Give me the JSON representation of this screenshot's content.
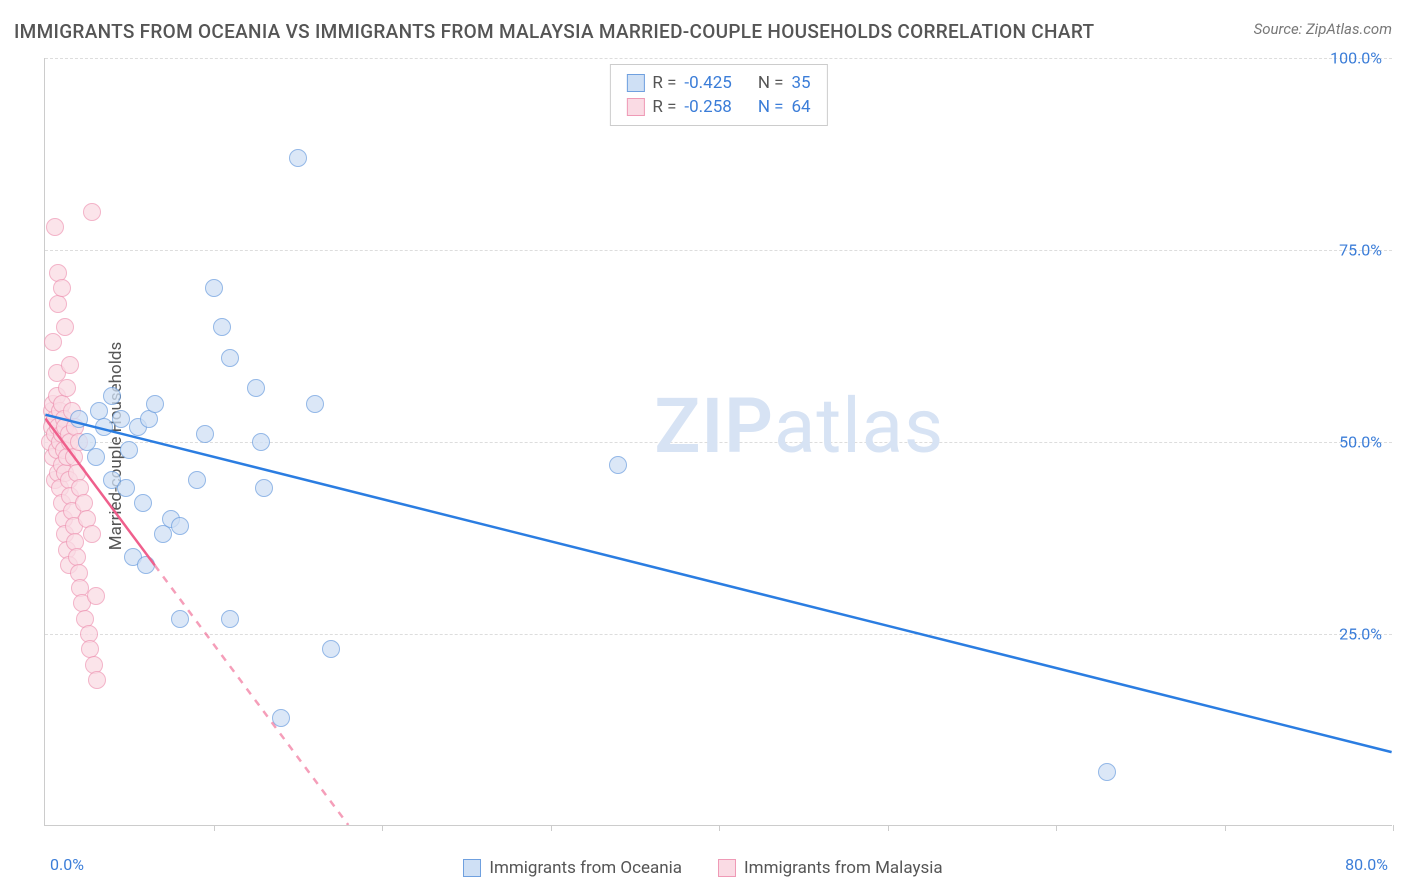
{
  "title": "IMMIGRANTS FROM OCEANIA VS IMMIGRANTS FROM MALAYSIA MARRIED-COUPLE HOUSEHOLDS CORRELATION CHART",
  "source": "Source: ZipAtlas.com",
  "y_axis_label": "Married-couple Households",
  "watermark_a": "ZIP",
  "watermark_b": "atlas",
  "watermark_color": "#d7e3f4",
  "chart": {
    "type": "scatter",
    "xlim": [
      0,
      80
    ],
    "ylim": [
      0,
      100
    ],
    "x_tick_step": 10,
    "y_ticks": [
      25,
      50,
      75,
      100
    ],
    "y_tick_labels": [
      "25.0%",
      "50.0%",
      "75.0%",
      "100.0%"
    ],
    "x_min_label": "0.0%",
    "x_max_label": "80.0%",
    "grid_color": "#dddddd",
    "axis_color": "#cccccc",
    "tick_label_color": "#3b7dd8",
    "background_color": "#ffffff",
    "marker_radius": 9,
    "series": [
      {
        "name": "Immigrants from Oceania",
        "fill": "#cfe0f5",
        "stroke": "#6fa0df",
        "fill_opacity": 0.75,
        "r_value": "-0.425",
        "n_value": "35",
        "trend": {
          "x1": 0,
          "y1": 53.5,
          "x2": 80,
          "y2": 9.5,
          "color": "#2b7de1",
          "width": 2.5,
          "dash_after_x": 100
        },
        "points": [
          [
            2.0,
            53
          ],
          [
            2.5,
            50
          ],
          [
            3.0,
            48
          ],
          [
            3.2,
            54
          ],
          [
            3.5,
            52
          ],
          [
            4.0,
            45
          ],
          [
            4.0,
            56
          ],
          [
            4.5,
            53
          ],
          [
            4.8,
            44
          ],
          [
            5.0,
            49
          ],
          [
            5.2,
            35
          ],
          [
            5.5,
            52
          ],
          [
            5.8,
            42
          ],
          [
            6.0,
            34
          ],
          [
            6.2,
            53
          ],
          [
            6.5,
            55
          ],
          [
            7.0,
            38
          ],
          [
            7.5,
            40
          ],
          [
            8.0,
            39
          ],
          [
            8.0,
            27
          ],
          [
            9.0,
            45
          ],
          [
            9.5,
            51
          ],
          [
            10.0,
            70
          ],
          [
            10.5,
            65
          ],
          [
            11.0,
            61
          ],
          [
            11.0,
            27
          ],
          [
            12.5,
            57
          ],
          [
            12.8,
            50
          ],
          [
            13.0,
            44
          ],
          [
            14.0,
            14
          ],
          [
            15.0,
            87
          ],
          [
            16.0,
            55
          ],
          [
            17.0,
            23
          ],
          [
            34.0,
            47
          ],
          [
            63.0,
            7
          ]
        ]
      },
      {
        "name": "Immigrants from Malaysia",
        "fill": "#fadbe4",
        "stroke": "#ef9ab6",
        "fill_opacity": 0.75,
        "r_value": "-0.258",
        "n_value": "64",
        "trend": {
          "x1": 0,
          "y1": 53,
          "x2": 18,
          "y2": 0,
          "color": "#ef5f8c",
          "width": 2.5,
          "dash_after_x": 6.5
        },
        "points": [
          [
            0.3,
            50
          ],
          [
            0.4,
            52
          ],
          [
            0.4,
            54
          ],
          [
            0.5,
            48
          ],
          [
            0.5,
            55
          ],
          [
            0.5,
            63
          ],
          [
            0.6,
            45
          ],
          [
            0.6,
            51
          ],
          [
            0.6,
            53
          ],
          [
            0.7,
            49
          ],
          [
            0.7,
            56
          ],
          [
            0.7,
            59
          ],
          [
            0.8,
            46
          ],
          [
            0.8,
            52
          ],
          [
            0.8,
            68
          ],
          [
            0.9,
            44
          ],
          [
            0.9,
            50
          ],
          [
            0.9,
            54
          ],
          [
            1.0,
            42
          ],
          [
            1.0,
            47
          ],
          [
            1.0,
            51
          ],
          [
            1.0,
            55
          ],
          [
            1.1,
            40
          ],
          [
            1.1,
            49
          ],
          [
            1.1,
            53
          ],
          [
            1.2,
            38
          ],
          [
            1.2,
            46
          ],
          [
            1.2,
            52
          ],
          [
            1.3,
            36
          ],
          [
            1.3,
            48
          ],
          [
            1.3,
            57
          ],
          [
            1.4,
            34
          ],
          [
            1.4,
            45
          ],
          [
            1.4,
            51
          ],
          [
            1.5,
            43
          ],
          [
            1.5,
            50
          ],
          [
            1.5,
            60
          ],
          [
            1.6,
            41
          ],
          [
            1.6,
            54
          ],
          [
            1.7,
            39
          ],
          [
            1.7,
            48
          ],
          [
            1.8,
            37
          ],
          [
            1.8,
            52
          ],
          [
            1.9,
            35
          ],
          [
            1.9,
            46
          ],
          [
            2.0,
            33
          ],
          [
            2.0,
            50
          ],
          [
            2.1,
            31
          ],
          [
            2.1,
            44
          ],
          [
            2.2,
            29
          ],
          [
            2.3,
            42
          ],
          [
            2.4,
            27
          ],
          [
            2.5,
            40
          ],
          [
            2.6,
            25
          ],
          [
            2.7,
            23
          ],
          [
            2.8,
            38
          ],
          [
            2.9,
            21
          ],
          [
            3.0,
            30
          ],
          [
            3.1,
            19
          ],
          [
            0.6,
            78
          ],
          [
            0.8,
            72
          ],
          [
            1.0,
            70
          ],
          [
            1.2,
            65
          ],
          [
            2.8,
            80
          ]
        ]
      }
    ]
  },
  "legend_bottom": {
    "item1": "Immigrants from Oceania",
    "item2": "Immigrants from Malaysia"
  }
}
